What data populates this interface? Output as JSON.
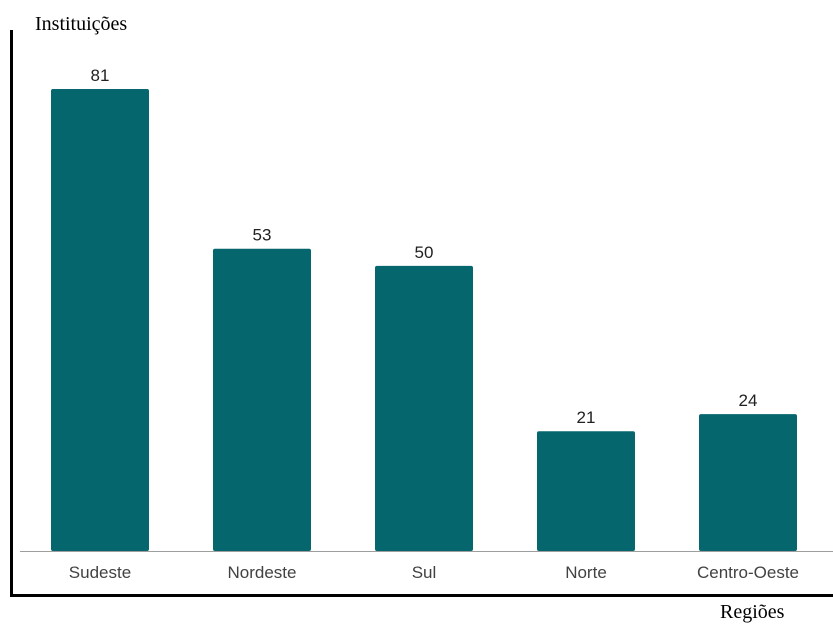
{
  "chart_data": {
    "type": "bar",
    "title": "",
    "ylabel": "Instituições",
    "xlabel": "Regiões",
    "categories": [
      "Sudeste",
      "Nordeste",
      "Sul",
      "Norte",
      "Centro-Oeste"
    ],
    "values": [
      81,
      53,
      50,
      21,
      24
    ],
    "data_labels": [
      "81",
      "53",
      "50",
      "21",
      "24"
    ],
    "ylim": [
      0,
      90
    ],
    "grid": false,
    "legend": "none",
    "colors": {
      "bar": "#05666e",
      "baseline": "#9e9e9e",
      "frame": "#000000"
    }
  }
}
